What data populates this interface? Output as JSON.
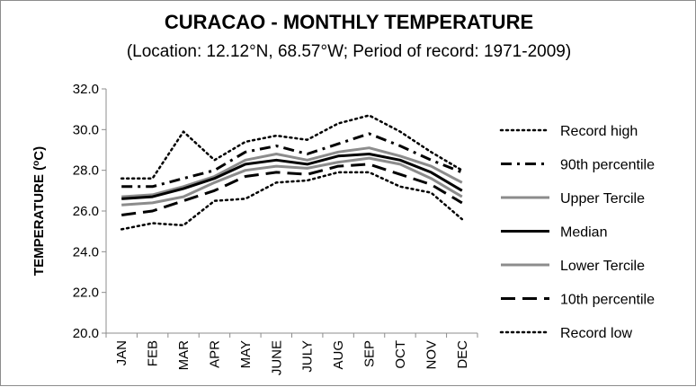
{
  "chart_data": {
    "type": "line",
    "title": "CURACAO - MONTHLY TEMPERATURE",
    "subtitle": "(Location: 12.12°N, 68.57°W; Period of record: 1971-2009)",
    "ylabel_prefix": "TEMPERATURE (",
    "ylabel_sup": "o",
    "ylabel_suffix": "C)",
    "xlabel": "",
    "ylim": [
      20.0,
      32.0
    ],
    "yticks": [
      "20.0",
      "22.0",
      "24.0",
      "26.0",
      "28.0",
      "30.0",
      "32.0"
    ],
    "ytick_values": [
      20,
      22,
      24,
      26,
      28,
      30,
      32
    ],
    "categories": [
      "JAN",
      "FEB",
      "MAR",
      "APR",
      "MAY",
      "JUNE",
      "JULY",
      "AUG",
      "SEP",
      "OCT",
      "NOV",
      "DEC"
    ],
    "grid": false,
    "legend_position": "right",
    "series": [
      {
        "name": "Record high",
        "style": "dotted",
        "color": "#000000",
        "values": [
          27.6,
          27.6,
          29.9,
          28.5,
          29.4,
          29.7,
          29.5,
          30.3,
          30.7,
          29.9,
          28.9,
          28.0
        ]
      },
      {
        "name": "90th percentile",
        "style": "dashdot",
        "color": "#000000",
        "values": [
          27.2,
          27.2,
          27.6,
          28.0,
          28.9,
          29.2,
          28.8,
          29.3,
          29.8,
          29.2,
          28.5,
          27.9
        ]
      },
      {
        "name": "Upper Tercile",
        "style": "solid-gray",
        "color": "#8c8c8c",
        "values": [
          26.7,
          26.8,
          27.2,
          27.7,
          28.5,
          28.8,
          28.5,
          28.9,
          29.1,
          28.7,
          28.2,
          27.4
        ]
      },
      {
        "name": "Median",
        "style": "solid-black",
        "color": "#000000",
        "values": [
          26.6,
          26.7,
          27.1,
          27.6,
          28.3,
          28.5,
          28.3,
          28.7,
          28.8,
          28.5,
          27.9,
          27.0
        ]
      },
      {
        "name": "Lower Tercile",
        "style": "solid-gray",
        "color": "#8c8c8c",
        "values": [
          26.3,
          26.4,
          26.7,
          27.4,
          28.0,
          28.2,
          28.1,
          28.4,
          28.6,
          28.3,
          27.6,
          26.7
        ]
      },
      {
        "name": "10th percentile",
        "style": "longdash",
        "color": "#000000",
        "values": [
          25.8,
          26.0,
          26.5,
          27.0,
          27.7,
          27.9,
          27.8,
          28.2,
          28.3,
          27.8,
          27.3,
          26.4
        ]
      },
      {
        "name": "Record low",
        "style": "dotted",
        "color": "#000000",
        "values": [
          25.1,
          25.4,
          25.3,
          26.5,
          26.6,
          27.4,
          27.5,
          27.9,
          27.9,
          27.2,
          26.9,
          25.6
        ]
      }
    ]
  }
}
